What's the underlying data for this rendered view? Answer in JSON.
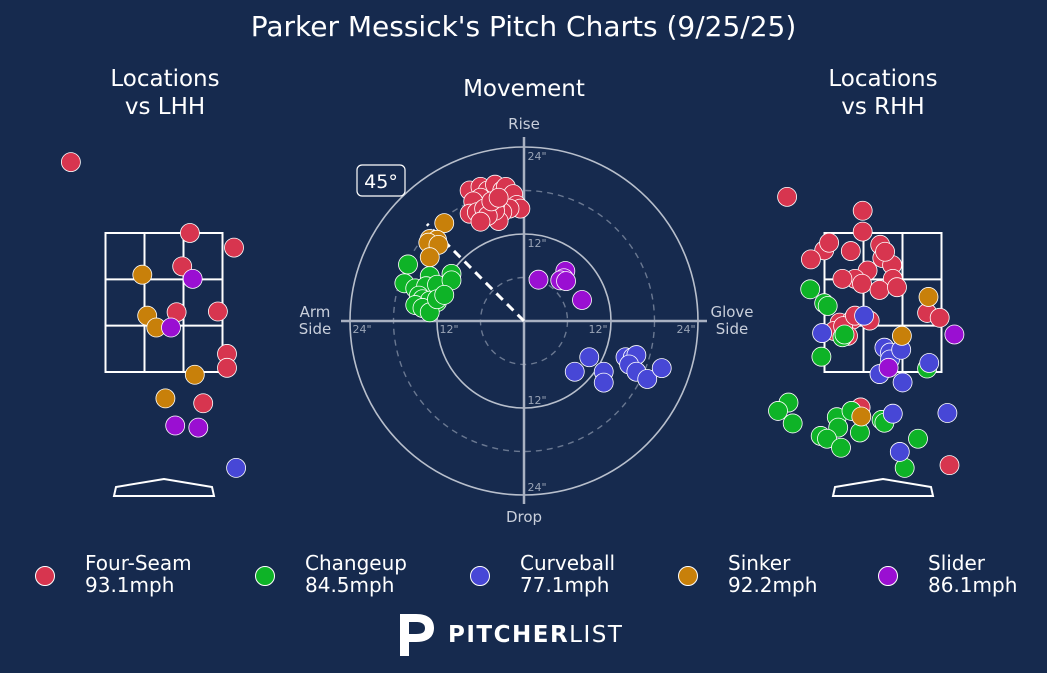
{
  "title": "Parker Messick's Pitch Charts (9/25/25)",
  "panels": {
    "lhh_title_1": "Locations",
    "lhh_title_2": "vs LHH",
    "movement_title": "Movement",
    "rhh_title_1": "Locations",
    "rhh_title_2": "vs RHH"
  },
  "colors": {
    "background": "#162a4e",
    "Four-Seam": "#d7354f",
    "Changeup": "#0eb327",
    "Curveball": "#4747d6",
    "Sinker": "#c8800a",
    "Slider": "#9a0fd2"
  },
  "legend": [
    {
      "pitch": "Four-Seam",
      "speed": "93.1mph"
    },
    {
      "pitch": "Changeup",
      "speed": "84.5mph"
    },
    {
      "pitch": "Curveball",
      "speed": "77.1mph"
    },
    {
      "pitch": "Sinker",
      "speed": "92.2mph"
    },
    {
      "pitch": "Slider",
      "speed": "86.1mph"
    }
  ],
  "brand": {
    "bold": "PITCHER",
    "light": "LIST"
  },
  "chart_data": [
    {
      "type": "scatter",
      "title": "Movement",
      "labels": {
        "top": "Rise",
        "bottom": "Drop",
        "left": "Arm Side",
        "right": "Glove Side"
      },
      "ring_labels": [
        "12\"",
        "24\""
      ],
      "arm_angle_label": "45°",
      "arm_angle": 45,
      "x_unit": "inches horizontal break (negative = arm side)",
      "y_unit": "inches induced vertical break",
      "range": [
        -24,
        24
      ],
      "series": [
        {
          "name": "Four-Seam",
          "points": [
            [
              -7.5,
              18
            ],
            [
              -6,
              18.5
            ],
            [
              -5,
              18
            ],
            [
              -4,
              18.8
            ],
            [
              -3,
              18
            ],
            [
              -2.5,
              18.5
            ],
            [
              -1.5,
              17.5
            ],
            [
              -1,
              16
            ],
            [
              -0.5,
              15.5
            ],
            [
              -2,
              15.5
            ],
            [
              -3,
              15
            ],
            [
              -4,
              16
            ],
            [
              -5,
              16.5
            ],
            [
              -6,
              17
            ],
            [
              -7,
              16.5
            ],
            [
              -7.5,
              14.8
            ],
            [
              -6.5,
              15
            ],
            [
              -5.5,
              15.5
            ],
            [
              -4.5,
              14.5
            ],
            [
              -3.5,
              13.8
            ],
            [
              -4,
              15.2
            ],
            [
              -5,
              14.5
            ],
            [
              -6,
              13.7
            ],
            [
              -4.5,
              16.5
            ],
            [
              -3.5,
              17
            ]
          ]
        },
        {
          "name": "Changeup",
          "points": [
            [
              -16,
              7.8
            ],
            [
              -13,
              6.2
            ],
            [
              -10,
              6.5
            ],
            [
              -16.5,
              5.2
            ],
            [
              -15,
              4.5
            ],
            [
              -13.5,
              4.8
            ],
            [
              -12,
              5
            ],
            [
              -10,
              5.6
            ],
            [
              -14.5,
              3.5
            ],
            [
              -14,
              3
            ],
            [
              -13,
              2.8
            ],
            [
              -12,
              2.6
            ],
            [
              -15,
              2.2
            ],
            [
              -14,
              1.8
            ],
            [
              -13,
              1.2
            ],
            [
              -12,
              3
            ],
            [
              -11,
              3.6
            ]
          ]
        },
        {
          "name": "Curveball",
          "points": [
            [
              9,
              -5
            ],
            [
              7,
              -7
            ],
            [
              11,
              -7
            ],
            [
              14,
              -5
            ],
            [
              15,
              -5
            ],
            [
              15.5,
              -4.7
            ],
            [
              14.5,
              -6
            ],
            [
              11,
              -8.5
            ],
            [
              15.5,
              -7
            ],
            [
              17,
              -8
            ],
            [
              19,
              -6.5
            ]
          ]
        },
        {
          "name": "Sinker",
          "points": [
            [
              -11,
              13.5
            ],
            [
              -13,
              11.3
            ],
            [
              -12,
              11.2
            ],
            [
              -13.2,
              10.8
            ],
            [
              -11.8,
              10.5
            ],
            [
              -13,
              8.8
            ]
          ]
        },
        {
          "name": "Slider",
          "points": [
            [
              2,
              5.7
            ],
            [
              5.7,
              6.9
            ],
            [
              5.5,
              5.9
            ],
            [
              5,
              5.6
            ],
            [
              5.8,
              5.5
            ],
            [
              8,
              2.9
            ]
          ]
        }
      ]
    },
    {
      "type": "scatter",
      "title": "Locations vs LHH",
      "unit": "feet (x: catcher's view horizontal, y: height)",
      "strike_zone": {
        "x": [
          -0.83,
          0.83
        ],
        "y": [
          1.5,
          3.5
        ]
      },
      "series": [
        {
          "name": "Four-Seam",
          "points": [
            [
              -1.33,
              4.52
            ],
            [
              0.37,
              3.5
            ],
            [
              1.0,
              3.29
            ],
            [
              0.26,
              3.02
            ],
            [
              0.77,
              2.37
            ],
            [
              0.18,
              2.36
            ],
            [
              0.9,
              1.76
            ],
            [
              0.9,
              1.56
            ],
            [
              0.56,
              1.05
            ]
          ]
        },
        {
          "name": "Changeup",
          "points": []
        },
        {
          "name": "Curveball",
          "points": [
            [
              1.03,
              0.12
            ]
          ]
        },
        {
          "name": "Sinker",
          "points": [
            [
              -0.31,
              2.9
            ],
            [
              -0.24,
              2.31
            ],
            [
              -0.11,
              2.14
            ],
            [
              0.44,
              1.46
            ],
            [
              0.02,
              1.12
            ]
          ]
        },
        {
          "name": "Slider",
          "points": [
            [
              0.41,
              2.84
            ],
            [
              0.1,
              2.14
            ],
            [
              0.16,
              0.73
            ],
            [
              0.49,
              0.7
            ]
          ]
        }
      ]
    },
    {
      "type": "scatter",
      "title": "Locations vs RHH",
      "unit": "feet (x: catcher's view horizontal, y: height)",
      "strike_zone": {
        "x": [
          -0.83,
          0.83
        ],
        "y": [
          1.5,
          3.5
        ]
      },
      "series": [
        {
          "name": "Four-Seam",
          "points": [
            [
              -1.37,
              4.02
            ],
            [
              -0.29,
              3.82
            ],
            [
              -0.29,
              3.52
            ],
            [
              -0.04,
              3.33
            ],
            [
              -0.84,
              3.25
            ],
            [
              -0.77,
              3.36
            ],
            [
              -1.03,
              3.12
            ],
            [
              -0.46,
              3.24
            ],
            [
              -0.01,
              3.14
            ],
            [
              0.13,
              3.04
            ],
            [
              0.03,
              3.23
            ],
            [
              0.14,
              2.84
            ],
            [
              -0.22,
              2.96
            ],
            [
              -0.4,
              2.84
            ],
            [
              -0.58,
              2.84
            ],
            [
              -0.3,
              2.77
            ],
            [
              -0.05,
              2.68
            ],
            [
              0.2,
              2.72
            ],
            [
              0.63,
              2.35
            ],
            [
              0.81,
              2.28
            ],
            [
              -0.62,
              2.21
            ],
            [
              -0.44,
              2.25
            ],
            [
              -0.7,
              2.09
            ],
            [
              -0.5,
              2.02
            ],
            [
              -0.57,
              2.16
            ],
            [
              -0.32,
              0.99
            ],
            [
              0.95,
              0.16
            ],
            [
              -0.19,
              2.24
            ],
            [
              -0.4,
              2.31
            ]
          ]
        },
        {
          "name": "Changeup",
          "points": [
            [
              -1.04,
              2.69
            ],
            [
              -0.84,
              2.49
            ],
            [
              -0.79,
              2.45
            ],
            [
              -0.58,
              2.0
            ],
            [
              -0.55,
              2.04
            ],
            [
              -0.88,
              1.72
            ],
            [
              -1.35,
              1.06
            ],
            [
              -1.29,
              0.76
            ],
            [
              -0.66,
              0.85
            ],
            [
              -0.64,
              0.7
            ],
            [
              -0.45,
              0.94
            ],
            [
              -0.02,
              0.81
            ],
            [
              -1.5,
              0.94
            ],
            [
              -0.33,
              0.63
            ],
            [
              0.02,
              0.77
            ],
            [
              -0.89,
              0.58
            ],
            [
              -0.8,
              0.54
            ],
            [
              -0.6,
              0.41
            ],
            [
              0.5,
              0.54
            ],
            [
              0.31,
              0.12
            ],
            [
              0.63,
              1.55
            ]
          ]
        },
        {
          "name": "Curveball",
          "points": [
            [
              -0.87,
              2.06
            ],
            [
              -0.27,
              2.31
            ],
            [
              0.02,
              1.85
            ],
            [
              0.1,
              1.78
            ],
            [
              0.1,
              1.68
            ],
            [
              0.26,
              1.82
            ],
            [
              -0.05,
              1.47
            ],
            [
              0.28,
              1.35
            ],
            [
              0.66,
              1.63
            ],
            [
              0.92,
              0.91
            ],
            [
              0.14,
              0.9
            ],
            [
              0.24,
              0.35
            ]
          ]
        },
        {
          "name": "Sinker",
          "points": [
            [
              0.65,
              2.58
            ],
            [
              0.27,
              2.02
            ],
            [
              -0.31,
              0.86
            ]
          ]
        },
        {
          "name": "Slider",
          "points": [
            [
              1.02,
              2.04
            ],
            [
              0.08,
              1.56
            ]
          ]
        }
      ]
    }
  ]
}
